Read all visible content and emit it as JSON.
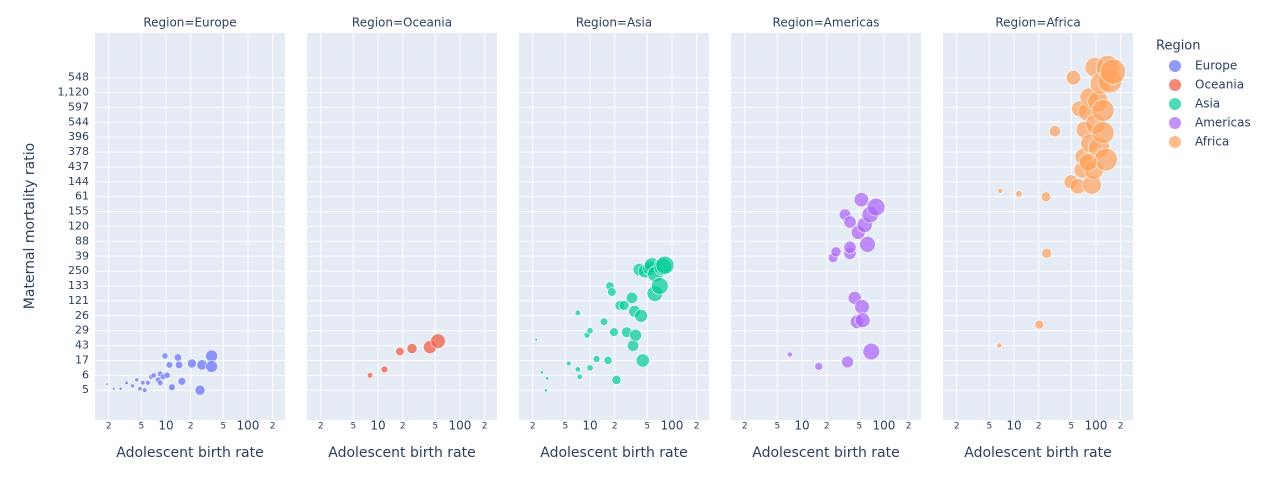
{
  "chart_data": {
    "type": "scatter",
    "y_label": "Maternal mortality ratio",
    "x_label": "Adolescent birth rate",
    "legend_title": "Region",
    "log_x": true,
    "grid": true,
    "xlim": [
      1.36,
      283
    ],
    "xticks": [
      2,
      5,
      10,
      {
        "value": 20,
        "label": "2"
      },
      {
        "value": 50,
        "label": "5"
      },
      100,
      {
        "value": 200,
        "label": "2"
      }
    ],
    "ylim": [
      -2,
      24
    ],
    "yticks": [
      {
        "value": 0,
        "label": "5"
      },
      {
        "value": 1,
        "label": "6"
      },
      {
        "value": 2,
        "label": "17"
      },
      {
        "value": 3,
        "label": "43"
      },
      {
        "value": 4,
        "label": "29"
      },
      {
        "value": 5,
        "label": "26"
      },
      {
        "value": 6,
        "label": "121"
      },
      {
        "value": 7,
        "label": "133"
      },
      {
        "value": 8,
        "label": "250"
      },
      {
        "value": 9,
        "label": "39"
      },
      {
        "value": 10,
        "label": "88"
      },
      {
        "value": 11,
        "label": "120"
      },
      {
        "value": 12,
        "label": "155"
      },
      {
        "value": 13,
        "label": "61"
      },
      {
        "value": 14,
        "label": "144"
      },
      {
        "value": 15,
        "label": "437"
      },
      {
        "value": 16,
        "label": "378"
      },
      {
        "value": 17,
        "label": "396"
      },
      {
        "value": 18,
        "label": "544"
      },
      {
        "value": 19,
        "label": "597"
      },
      {
        "value": 20,
        "label": "1,120"
      },
      {
        "value": 21,
        "label": "548"
      }
    ],
    "series": [
      {
        "name": "Europe",
        "facet_title": "Region=Europe",
        "color": "#636efa",
        "x": [
          1.9,
          2.3,
          2.8,
          3.3,
          3.9,
          4.4,
          4.8,
          5.2,
          5.5,
          6,
          6.6,
          7.1,
          8,
          8.5,
          9.2,
          9.7,
          10.3,
          11,
          11.8,
          14,
          14.4,
          15.6,
          20.7,
          26,
          27.5,
          36,
          36,
          8.5
        ],
        "y": [
          0.4,
          0.1,
          0.1,
          0.5,
          0.3,
          0.7,
          0.1,
          0.5,
          0,
          0.5,
          0.9,
          1,
          0.7,
          1.1,
          0.9,
          2.3,
          1,
          1.7,
          0.2,
          2.2,
          1.7,
          0.6,
          1.8,
          0,
          1.7,
          2.3,
          1.6,
          0.5
        ]
      },
      {
        "name": "Oceania",
        "facet_title": "Region=Oceania",
        "color": "#EF553B",
        "x": [
          8,
          12,
          18.5,
          26,
          43,
          54
        ],
        "y": [
          1,
          1.4,
          2.6,
          2.8,
          2.9,
          3.3
        ]
      },
      {
        "name": "Asia",
        "facet_title": "Region=Asia",
        "color": "#00cc96",
        "x": [
          2.2,
          2.6,
          3,
          2.9,
          5.5,
          7.1,
          7.5,
          7.1,
          9.2,
          10,
          10,
          12,
          14.8,
          16.6,
          17.5,
          18.5,
          19.6,
          21,
          23,
          26,
          28,
          32.5,
          35,
          33.5,
          36,
          40,
          42,
          44,
          47,
          54,
          57,
          62,
          63,
          71,
          77,
          82
        ],
        "y": [
          3.4,
          1.2,
          0.8,
          0,
          1.8,
          5.2,
          0.9,
          1.4,
          3.7,
          4,
          1.5,
          2.1,
          4.6,
          2,
          7,
          6.6,
          3.9,
          0.7,
          5.7,
          5.7,
          3.9,
          6.2,
          5.3,
          3,
          3.7,
          8.1,
          5,
          2,
          8,
          8.2,
          8.4,
          6.5,
          7.8,
          7,
          8.3,
          8.4
        ]
      },
      {
        "name": "Americas",
        "facet_title": "Region=Americas",
        "color": "#ab63fa",
        "x": [
          7.1,
          16,
          24,
          26,
          36,
          38.5,
          38.5,
          33.5,
          38.5,
          44,
          47,
          48.5,
          53,
          54,
          55,
          58,
          63,
          68,
          70,
          80
        ],
        "y": [
          2.4,
          1.6,
          8.9,
          9.3,
          1.9,
          9.2,
          9.6,
          11.8,
          11.3,
          6.2,
          4.6,
          10.6,
          12.8,
          5.6,
          4.7,
          11.1,
          9.8,
          11.8,
          2.6,
          12.3
        ]
      },
      {
        "name": "Africa",
        "facet_title": "Region=Africa",
        "color": "#FFA15A",
        "x": [
          6.6,
          6.8,
          11.5,
          24.5,
          25,
          31.5,
          20.3,
          53,
          49.6,
          60,
          63,
          68,
          70,
          73,
          77,
          82,
          84,
          89,
          94,
          97,
          99,
          106,
          109,
          115,
          122,
          132,
          140,
          148,
          161,
          122,
          80
        ],
        "y": [
          3,
          13.4,
          13.2,
          13,
          9.2,
          17.4,
          4.4,
          21,
          14,
          13.7,
          18.9,
          14.8,
          15.7,
          17.5,
          18.7,
          19.7,
          16.6,
          13.8,
          14.8,
          21.7,
          17.9,
          19.4,
          16.3,
          20.6,
          17.3,
          15.5,
          21.7,
          20.8,
          21.4,
          18.8,
          15.3
        ]
      }
    ]
  }
}
